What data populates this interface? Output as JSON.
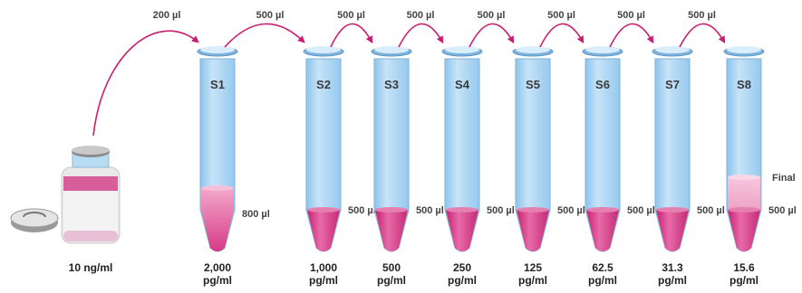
{
  "stock": {
    "label": "10 ng/ml"
  },
  "transfers": [
    "200 µl",
    "500 µl",
    "500 µl",
    "500 µl",
    "500 µl",
    "500 µl",
    "500 µl",
    "500 µl"
  ],
  "tubes": [
    {
      "id": "S1",
      "volume": "800 µl",
      "conc_value": "2,000",
      "conc_unit": "pg/ml"
    },
    {
      "id": "S2",
      "volume": "500 µl",
      "conc_value": "1,000",
      "conc_unit": "pg/ml"
    },
    {
      "id": "S3",
      "volume": "500 µl",
      "conc_value": "500",
      "conc_unit": "pg/ml"
    },
    {
      "id": "S4",
      "volume": "500 µl",
      "conc_value": "250",
      "conc_unit": "pg/ml"
    },
    {
      "id": "S5",
      "volume": "500 µl",
      "conc_value": "125",
      "conc_unit": "pg/ml"
    },
    {
      "id": "S6",
      "volume": "500 µl",
      "conc_value": "62.5",
      "conc_unit": "pg/ml"
    },
    {
      "id": "S7",
      "volume": "500 µl",
      "conc_value": "31.3",
      "conc_unit": "pg/ml"
    },
    {
      "id": "S8",
      "volume": "500 µl",
      "conc_value": "15.6",
      "conc_unit": "pg/ml"
    }
  ],
  "final_label": "Final",
  "colors": {
    "tube": "#a9d3f2",
    "liquid": "#d6348a",
    "arrow": "#c81f72"
  }
}
